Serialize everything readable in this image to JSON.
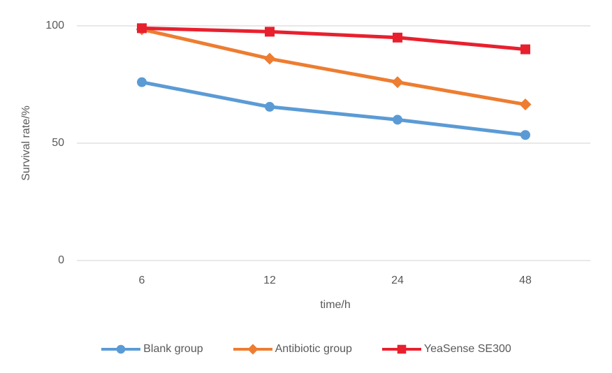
{
  "chart_data": {
    "type": "line",
    "categories": [
      6,
      12,
      24,
      48
    ],
    "x_tick_labels": [
      "6",
      "12",
      "24",
      "48"
    ],
    "yticks": [
      0,
      50,
      100
    ],
    "ytick_labels": [
      "0",
      "50",
      "100"
    ],
    "ylim": [
      0,
      100
    ],
    "xlabel": "time/h",
    "ylabel": "Survival rate/%",
    "grid": "horizontal",
    "legend_position": "bottom",
    "series": [
      {
        "name": "Blank group",
        "marker": "circle",
        "color": "#5b9bd5",
        "values": [
          76,
          65.5,
          60,
          53.5
        ]
      },
      {
        "name": "Antibiotic group",
        "marker": "diamond",
        "color": "#ed7d31",
        "values": [
          98.5,
          86,
          76,
          66.5
        ]
      },
      {
        "name": "YeaSense SE300",
        "marker": "square",
        "color": "#e8202e",
        "values": [
          99,
          97.5,
          95,
          90
        ]
      }
    ]
  },
  "colors": {
    "gridline": "#d9d9d9",
    "axis_line": "#d9d9d9",
    "axis_text": "#595959",
    "background": "#ffffff"
  }
}
